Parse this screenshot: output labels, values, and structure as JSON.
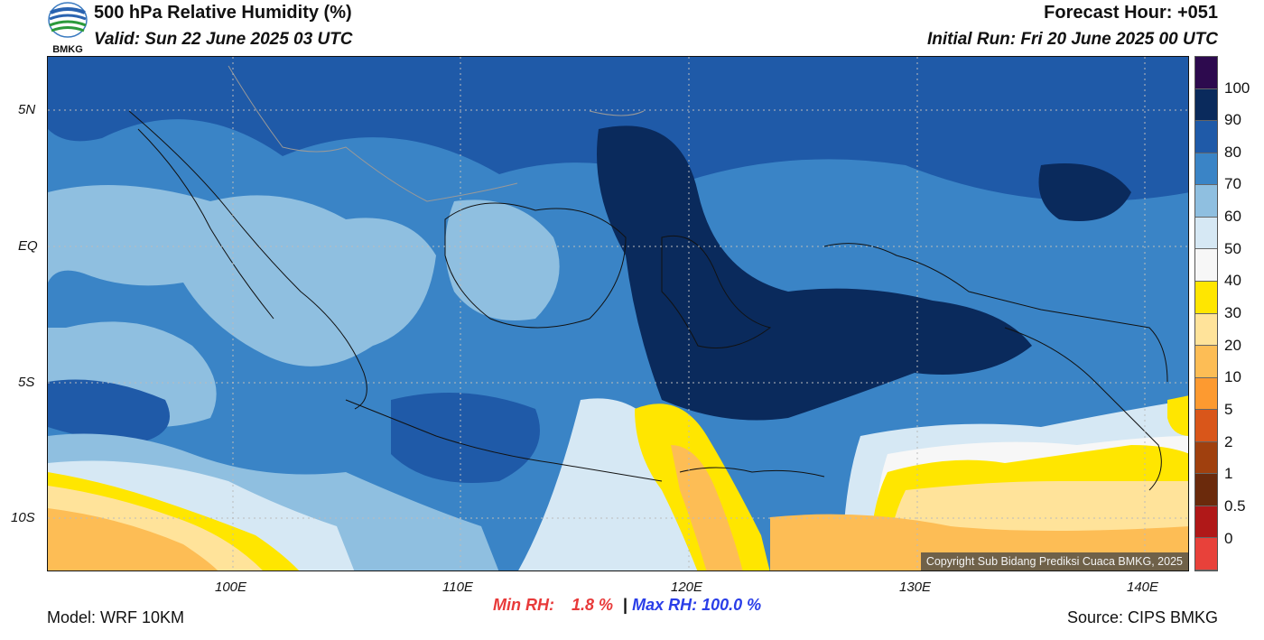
{
  "header": {
    "title": "500 hPa Relative Humidity (%)",
    "valid": "Valid: Sun 22 June 2025 03 UTC",
    "forecast_hour": "Forecast Hour: +051",
    "initial_run": "Initial Run: Fri 20 June 2025 00 UTC",
    "logo_text": "BMKG"
  },
  "axes": {
    "lat_labels": [
      "5N",
      "EQ",
      "5S",
      "10S"
    ],
    "lon_labels": [
      "100E",
      "110E",
      "120E",
      "130E",
      "140E"
    ]
  },
  "colorbar": {
    "labels": [
      "100",
      "90",
      "80",
      "70",
      "60",
      "50",
      "40",
      "30",
      "20",
      "10",
      "5",
      "2",
      "1",
      "0.5",
      "0"
    ],
    "colors": [
      "#2d0a4e",
      "#0a2a5c",
      "#1f5aa8",
      "#3a84c6",
      "#8fbfe0",
      "#d6e8f4",
      "#f7f7f7",
      "#ffe600",
      "#ffe39a",
      "#fdbd55",
      "#fd9a30",
      "#d9561a",
      "#a0400e",
      "#6b2a0c",
      "#b01818",
      "#e8413a"
    ]
  },
  "stats": {
    "min_label": "Min RH:",
    "min_value": "1.8 %",
    "sep": "|",
    "max_label": "Max RH:",
    "max_value": "100.0 %"
  },
  "footer": {
    "model": "Model: WRF 10KM",
    "source": "Source: CIPS BMKG",
    "copyright": "Copyright Sub Bidang Prediksi Cuaca BMKG, 2025"
  }
}
